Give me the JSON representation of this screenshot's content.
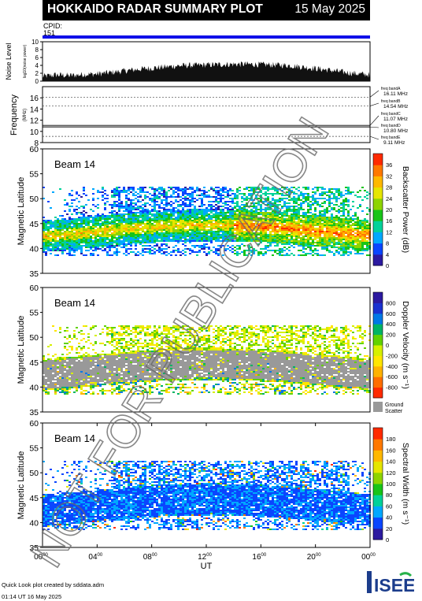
{
  "header": {
    "title": "HOKKAIDO RADAR SUMMARY PLOT",
    "date": "15 May 2025"
  },
  "cpid": {
    "label": "CPID:",
    "value": "151"
  },
  "noise_panel": {
    "ylabel": "Noise Level",
    "ysublabel": "log10(noise power)",
    "ticks": [
      "0",
      "2",
      "4",
      "6",
      "8",
      "10"
    ],
    "ylim": [
      0,
      10
    ],
    "profile": [
      [
        0,
        1.2
      ],
      [
        1,
        1.6
      ],
      [
        2,
        1.4
      ],
      [
        3,
        1.7
      ],
      [
        4,
        1.8
      ],
      [
        5,
        2.2
      ],
      [
        6,
        2.6
      ],
      [
        7,
        3.0
      ],
      [
        8,
        3.3
      ],
      [
        9,
        3.6
      ],
      [
        10,
        3.9
      ],
      [
        11,
        4.0
      ],
      [
        12,
        4.1
      ],
      [
        13,
        4.2
      ],
      [
        14,
        4.3
      ],
      [
        15,
        4.3
      ],
      [
        16,
        4.2
      ],
      [
        17,
        4.1
      ],
      [
        18,
        4.0
      ],
      [
        19,
        3.6
      ],
      [
        20,
        3.2
      ],
      [
        21,
        2.8
      ],
      [
        22,
        2.3
      ],
      [
        23,
        1.9
      ],
      [
        24,
        1.6
      ]
    ]
  },
  "freq_panel": {
    "ylabel": "Frequency",
    "yunit": "(MHz)",
    "ticks": [
      "8",
      "10",
      "12",
      "14",
      "16"
    ],
    "ylim": [
      8,
      18
    ],
    "bands": [
      {
        "name": "freq bandA",
        "value": "16.11 MHz",
        "mhz": 16.11
      },
      {
        "name": "freq bandB",
        "value": "14.54 MHz",
        "mhz": 14.54
      },
      {
        "name": "freq bandC",
        "value": "11.07 MHz",
        "mhz": 11.07
      },
      {
        "name": "freq bandD",
        "value": "10.80 MHz",
        "mhz": 10.8
      },
      {
        "name": "freq bandE",
        "value": "9.11 MHz",
        "mhz": 9.11
      }
    ]
  },
  "x_axis": {
    "ticks": [
      {
        "h": 0,
        "main": "00",
        "sup": "00"
      },
      {
        "h": 4,
        "main": "04",
        "sup": "00"
      },
      {
        "h": 8,
        "main": "08",
        "sup": "00"
      },
      {
        "h": 12,
        "main": "12",
        "sup": "00"
      },
      {
        "h": 16,
        "main": "16",
        "sup": "00"
      },
      {
        "h": 20,
        "main": "20",
        "sup": "00"
      },
      {
        "h": 24,
        "main": "00",
        "sup": "00"
      }
    ],
    "label": "UT",
    "range": [
      0,
      24
    ]
  },
  "chart_data": [
    {
      "type": "heatmap",
      "beam": "Beam 14",
      "ylabel": "Magnetic Latitude",
      "ylim": [
        35,
        60
      ],
      "yticks": [
        "35",
        "40",
        "45",
        "50",
        "55",
        "60"
      ],
      "colorbar_label": "Backscatter Power (dB)",
      "colorbar_ticks": [
        "0",
        "4",
        "8",
        "12",
        "16",
        "20",
        "24",
        "28",
        "32",
        "36"
      ],
      "colorbar_range": [
        0,
        40
      ],
      "colors": [
        "#2c1aa0",
        "#0a46ff",
        "#00a8ff",
        "#00d29a",
        "#18c418",
        "#8ed400",
        "#e6e600",
        "#ffb800",
        "#ff7800",
        "#ff2a00"
      ]
    },
    {
      "type": "heatmap",
      "beam": "Beam 14",
      "ylabel": "Magnetic Latitude",
      "ylim": [
        35,
        60
      ],
      "yticks": [
        "35",
        "40",
        "45",
        "50",
        "55",
        "60"
      ],
      "colorbar_label": "Doppler Velocity (m s⁻¹)",
      "colorbar_ticks": [
        "-800",
        "-600",
        "-400",
        "-200",
        "0",
        "200",
        "400",
        "600",
        "800"
      ],
      "colorbar_range": [
        -1000,
        1000
      ],
      "colors": [
        "#ff2a00",
        "#ff6e00",
        "#ffb200",
        "#ffe600",
        "#d6f000",
        "#62d200",
        "#00b464",
        "#0078e6",
        "#1a32d0",
        "#2c1aa0"
      ],
      "ground_scatter_label": [
        "Ground",
        "Scatter"
      ],
      "ground_scatter_color": "#999999"
    },
    {
      "type": "heatmap",
      "beam": "Beam 14",
      "ylabel": "Magnetic Latitude",
      "ylim": [
        35,
        60
      ],
      "yticks": [
        "35",
        "40",
        "45",
        "50",
        "55",
        "60"
      ],
      "colorbar_label": "Spectral Width (m s⁻¹)",
      "colorbar_ticks": [
        "0",
        "20",
        "40",
        "60",
        "80",
        "100",
        "120",
        "140",
        "160",
        "180"
      ],
      "colorbar_range": [
        0,
        200
      ],
      "colors": [
        "#2c1aa0",
        "#0a46ff",
        "#00a8ff",
        "#00d29a",
        "#18c418",
        "#8ed400",
        "#e6e600",
        "#ffb800",
        "#ff7800",
        "#ff2a00"
      ]
    }
  ],
  "watermark": "NOT FOR PUBLICATION",
  "footer": {
    "line1": "Quick Look plot created by sddata.adm",
    "line2": "01:14 UT 16 May 2025"
  },
  "logo": {
    "text": "ISEE"
  }
}
